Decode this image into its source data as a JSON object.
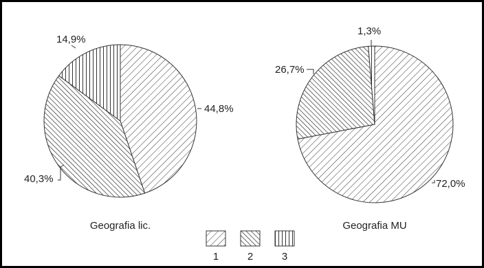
{
  "chart_data": [
    {
      "type": "pie",
      "title": "Geografia lic.",
      "slices": [
        {
          "category": "1",
          "value": 44.8,
          "label": "44,8%"
        },
        {
          "category": "2",
          "value": 40.3,
          "label": "40,3%"
        },
        {
          "category": "3",
          "value": 14.9,
          "label": "14,9%"
        }
      ]
    },
    {
      "type": "pie",
      "title": "Geografia MU",
      "slices": [
        {
          "category": "1",
          "value": 72.0,
          "label": "72,0%"
        },
        {
          "category": "2",
          "value": 26.7,
          "label": "26,7%"
        },
        {
          "category": "3",
          "value": 1.3,
          "label": "1,3%"
        }
      ]
    }
  ],
  "legend": [
    {
      "category": "1",
      "label": "1",
      "pattern": "diagonal-right"
    },
    {
      "category": "2",
      "label": "2",
      "pattern": "diagonal-left"
    },
    {
      "category": "3",
      "label": "3",
      "pattern": "vertical"
    }
  ],
  "colors": {
    "stroke": "#333333",
    "background": "#ffffff"
  }
}
